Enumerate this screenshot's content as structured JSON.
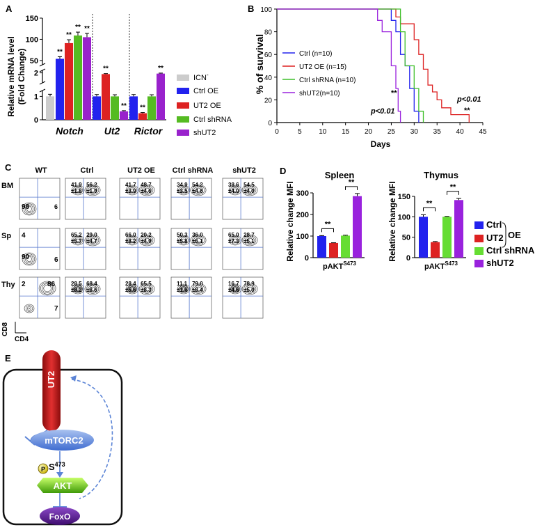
{
  "panel_labels": {
    "a": "A",
    "b": "B",
    "c": "C",
    "d": "D",
    "e": "E"
  },
  "colors": {
    "icn": "#cccccc",
    "ctrl_oe": "#2222ee",
    "ut2_oe": "#dd2222",
    "ctrl_shrna": "#55bb22",
    "shut2": "#9922cc",
    "flow_line": "#5577cc"
  },
  "panel_a": {
    "ylabel1": "Relative mRNA level",
    "ylabel2": "(Fold Change)",
    "yticks": [
      "0",
      "1",
      "2",
      "50",
      "100",
      "150"
    ],
    "legend": [
      "ICN",
      "Ctrl OE",
      "UT2 OE",
      "Ctrl shRNA",
      "shUT2"
    ],
    "legend_icn_sup": "-",
    "sig": "**"
  },
  "panel_b": {
    "ylabel": "% of survival",
    "xlabel": "Days",
    "pval": "p<0.01",
    "sig": "**"
  },
  "panel_c": {
    "col_headers": [
      "WT",
      "Ctrl",
      "UT2 OE",
      "Ctrl shRNA",
      "shUT2"
    ],
    "row_labels": [
      "BM",
      "Sp",
      "Thy"
    ],
    "axis_y": "CD8",
    "axis_x": "CD4",
    "pm": "±",
    "cells": [
      [
        {
          "big": "98",
          "c": "6"
        },
        {
          "a": "41.9",
          "ae": "1.8",
          "b": "56.2",
          "be": "1.9"
        },
        {
          "a": "41.7",
          "ae": "3.9",
          "b": "48.7",
          "be": "4.6"
        },
        {
          "a": "34.9",
          "ae": "3.5",
          "b": "54.2",
          "be": "4.6"
        },
        {
          "a": "38.6",
          "ae": "4.0",
          "b": "54.5",
          "be": "4.0"
        }
      ],
      [
        {
          "big": "90",
          "tl": "4",
          "br": "6"
        },
        {
          "a": "65.2",
          "ae": "5.7",
          "b": "29.0",
          "be": "4.7"
        },
        {
          "a": "66.0",
          "ae": "8.2",
          "b": "20.2",
          "be": "4.9"
        },
        {
          "a": "50.3",
          "ae": "5.8",
          "b": "36.0",
          "be": "6.1"
        },
        {
          "a": "65.0",
          "ae": "7.3",
          "b": "28.7",
          "be": "5.1"
        }
      ],
      [
        {
          "tl": "2",
          "tr": "86",
          "br": "7"
        },
        {
          "a": "28.5",
          "ae": "8.2",
          "b": "68.4",
          "be": "8.6"
        },
        {
          "a": "28.4",
          "ae": "5.6",
          "b": "65.5",
          "be": "8.3"
        },
        {
          "a": "11.1",
          "ae": "1.6",
          "b": "79.0",
          "be": "8.4"
        },
        {
          "a": "16.7",
          "ae": "4.6",
          "b": "78.9",
          "be": "5.0"
        }
      ]
    ]
  },
  "panel_d": {
    "ylabel": "Relative change MFI",
    "xlabel_base": "pAKT",
    "xlabel_sup": "S473",
    "legend": [
      "Ctrl",
      "UT2",
      "Ctrl shRNA",
      "shUT2"
    ],
    "legend_oe": "OE",
    "sig": "**"
  },
  "panel_e": {
    "ut2": "UT2",
    "mtorc2": "mTORC2",
    "p": "P",
    "s473_base": "S",
    "s473_sup": "473",
    "akt": "AKT",
    "foxo": "FoxO"
  },
  "chart_data": [
    {
      "type": "bar",
      "title": "A",
      "ylabel": "Relative mRNA level (Fold Change)",
      "axis_breaks": true,
      "ylim_segments": [
        [
          0,
          1.25
        ],
        [
          1.6,
          2.1
        ],
        [
          40,
          150
        ]
      ],
      "yticks": [
        0,
        1,
        2,
        50,
        100,
        150
      ],
      "categories": [
        "Notch",
        "Ut2",
        "Rictor"
      ],
      "series": [
        {
          "name": "ICN-",
          "values": [
            1.0,
            null,
            null
          ],
          "errors": [
            0.09,
            null,
            null
          ]
        },
        {
          "name": "Ctrl OE",
          "values": [
            54,
            1.0,
            1.0
          ],
          "errors": [
            5,
            0.08,
            0.08
          ]
        },
        {
          "name": "UT2 OE",
          "values": [
            91,
            1.95,
            0.28
          ],
          "errors": [
            8,
            0.02,
            0.03
          ]
        },
        {
          "name": "Ctrl shRNA",
          "values": [
            109,
            1.0,
            1.0
          ],
          "errors": [
            8,
            0.07,
            0.07
          ]
        },
        {
          "name": "shUT2",
          "values": [
            105,
            0.36,
            1.97
          ],
          "errors": [
            9,
            0.03,
            0.02
          ]
        }
      ],
      "significance": [
        {
          "category": "Notch",
          "series": "Ctrl OE",
          "label": "**"
        },
        {
          "category": "Notch",
          "series": "UT2 OE",
          "label": "**"
        },
        {
          "category": "Notch",
          "series": "Ctrl shRNA",
          "label": "**"
        },
        {
          "category": "Notch",
          "series": "shUT2",
          "label": "**"
        },
        {
          "category": "Ut2",
          "series": "UT2 OE",
          "label": "**"
        },
        {
          "category": "Ut2",
          "series": "shUT2",
          "label": "**"
        },
        {
          "category": "Rictor",
          "series": "UT2 OE",
          "label": "**"
        },
        {
          "category": "Rictor",
          "series": "shUT2",
          "label": "**"
        }
      ]
    },
    {
      "type": "line",
      "title": "B",
      "xlabel": "Days",
      "ylabel": "% of survival",
      "xlim": [
        0,
        45
      ],
      "ylim": [
        0,
        100
      ],
      "xticks": [
        0,
        5,
        10,
        15,
        20,
        25,
        30,
        35,
        40,
        45
      ],
      "yticks": [
        0,
        20,
        40,
        60,
        80,
        100
      ],
      "series": [
        {
          "name": "Ctrl (n=10)",
          "steps": [
            [
              0,
              100
            ],
            [
              25,
              100
            ],
            [
              25,
              90
            ],
            [
              26,
              90
            ],
            [
              26,
              80
            ],
            [
              27,
              80
            ],
            [
              27,
              60
            ],
            [
              28,
              60
            ],
            [
              28,
              50
            ],
            [
              29,
              50
            ],
            [
              29,
              30
            ],
            [
              30,
              30
            ],
            [
              30,
              10
            ],
            [
              31,
              10
            ],
            [
              31,
              0
            ]
          ]
        },
        {
          "name": "UT2 OE (n=15)",
          "steps": [
            [
              0,
              100
            ],
            [
              26,
              100
            ],
            [
              26,
              93
            ],
            [
              27,
              93
            ],
            [
              27,
              87
            ],
            [
              30,
              87
            ],
            [
              30,
              73
            ],
            [
              31,
              73
            ],
            [
              31,
              60
            ],
            [
              32,
              60
            ],
            [
              32,
              47
            ],
            [
              33,
              47
            ],
            [
              33,
              33
            ],
            [
              34,
              33
            ],
            [
              34,
              27
            ],
            [
              35,
              27
            ],
            [
              35,
              20
            ],
            [
              36,
              20
            ],
            [
              36,
              13
            ],
            [
              38,
              13
            ],
            [
              38,
              7
            ],
            [
              42,
              7
            ],
            [
              42,
              0
            ]
          ]
        },
        {
          "name": "Ctrl shRNA (n=10)",
          "steps": [
            [
              0,
              100
            ],
            [
              27,
              100
            ],
            [
              27,
              80
            ],
            [
              28,
              80
            ],
            [
              28,
              50
            ],
            [
              30,
              50
            ],
            [
              30,
              30
            ],
            [
              31,
              30
            ],
            [
              31,
              10
            ],
            [
              32,
              10
            ],
            [
              32,
              0
            ]
          ]
        },
        {
          "name": "shUT2(n=10)",
          "steps": [
            [
              0,
              100
            ],
            [
              22,
              100
            ],
            [
              22,
              90
            ],
            [
              23,
              90
            ],
            [
              23,
              80
            ],
            [
              25,
              80
            ],
            [
              25,
              50
            ],
            [
              26,
              50
            ],
            [
              26,
              30
            ],
            [
              26.5,
              30
            ],
            [
              26.5,
              10
            ],
            [
              27,
              10
            ],
            [
              27,
              0
            ]
          ]
        }
      ],
      "annotations": [
        "p<0.01",
        "**",
        "p<0.01",
        "**"
      ]
    },
    {
      "type": "bar",
      "title": "Spleen",
      "ylabel": "Relative change MFI",
      "xlabel": "pAKT S473",
      "ylim": [
        0,
        300
      ],
      "yticks": [
        0,
        100,
        200,
        300
      ],
      "categories": [
        "Ctrl OE",
        "UT2 OE",
        "Ctrl shRNA",
        "shUT2"
      ],
      "values": [
        100,
        68,
        102,
        285
      ],
      "errors": [
        2,
        1,
        2,
        12
      ],
      "significance": [
        [
          "Ctrl OE",
          "UT2 OE",
          "**"
        ],
        [
          "Ctrl shRNA",
          "shUT2",
          "**"
        ]
      ]
    },
    {
      "type": "bar",
      "title": "Thymus",
      "ylabel": "Relative change MFI",
      "xlabel": "pAKT S473",
      "ylim": [
        0,
        150
      ],
      "yticks": [
        0,
        50,
        100,
        150
      ],
      "categories": [
        "Ctrl OE",
        "UT2 OE",
        "Ctrl shRNA",
        "shUT2"
      ],
      "values": [
        100,
        38,
        100,
        141
      ],
      "errors": [
        5,
        1.5,
        1,
        4
      ],
      "significance": [
        [
          "Ctrl OE",
          "UT2 OE",
          "**"
        ],
        [
          "Ctrl shRNA",
          "shUT2",
          "**"
        ]
      ]
    }
  ]
}
